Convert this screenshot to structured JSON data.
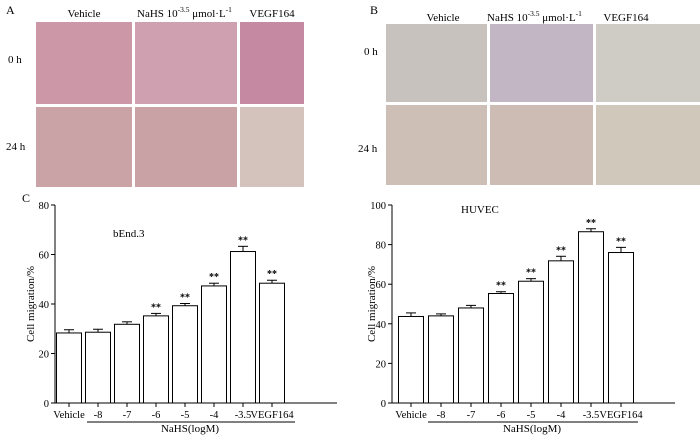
{
  "panel_labels": {
    "a": "A",
    "b": "B",
    "c": "C"
  },
  "micrograph_panels": [
    {
      "columns": [
        "Vehicle",
        "NaHS 10",
        "-3.5",
        " μmol·L",
        "-1",
        "VEGF164"
      ],
      "rows": [
        "0 h",
        "24 h"
      ],
      "tile_colors": [
        [
          "#cc98a8",
          "#cfa0b0",
          "#c58aa2"
        ],
        [
          "#c9a3a6",
          "#c8a2a4",
          "#d4c3bc"
        ]
      ]
    },
    {
      "columns": [
        "Vehicle",
        "NaHS 10",
        "-3.5",
        " μmol·L",
        "-1",
        "VEGF164"
      ],
      "rows": [
        "0 h",
        "24 h"
      ],
      "tile_colors": [
        [
          "#c7c2be",
          "#c2b6c5",
          "#cfccc5"
        ],
        [
          "#cdbfb5",
          "#ccbcb3",
          "#d0c8ba"
        ]
      ]
    }
  ],
  "chart_data": [
    {
      "type": "bar",
      "title": "bEnd.3",
      "ylabel": "Cell migration/%",
      "xlabel": "NaHS(logM)",
      "categories": [
        "Vehicle",
        "-8",
        "-7",
        "-6",
        "-5",
        "-4",
        "-3.5",
        "VEGF164"
      ],
      "values": [
        28.3,
        28.6,
        31.8,
        35.2,
        39.3,
        47.3,
        61.2,
        48.4
      ],
      "errors": [
        1.3,
        1.2,
        1.0,
        1.0,
        0.9,
        1.1,
        2.1,
        1.2
      ],
      "significance": [
        "",
        "",
        "",
        "**",
        "**",
        "**",
        "**",
        "**"
      ],
      "ylim": [
        0,
        80
      ],
      "yticks": [
        0,
        20,
        40,
        60,
        80
      ],
      "group_label_span": [
        "-8",
        "-3.5"
      ]
    },
    {
      "type": "bar",
      "title": "HUVEC",
      "ylabel": "Cell migration/%",
      "xlabel": "NaHS(logM)",
      "categories": [
        "Vehicle",
        "-8",
        "-7",
        "-6",
        "-5",
        "-4",
        "-3.5",
        "VEGF164"
      ],
      "values": [
        43.7,
        44.0,
        48.0,
        55.3,
        61.5,
        71.8,
        86.5,
        76.0
      ],
      "errors": [
        1.8,
        1.0,
        1.3,
        0.9,
        1.3,
        2.3,
        1.5,
        2.6
      ],
      "significance": [
        "",
        "",
        "",
        "**",
        "**",
        "**",
        "**",
        "**"
      ],
      "ylim": [
        0,
        100
      ],
      "yticks": [
        0,
        20,
        40,
        60,
        80,
        100
      ],
      "group_label_span": [
        "-8",
        "-3.5"
      ]
    }
  ]
}
